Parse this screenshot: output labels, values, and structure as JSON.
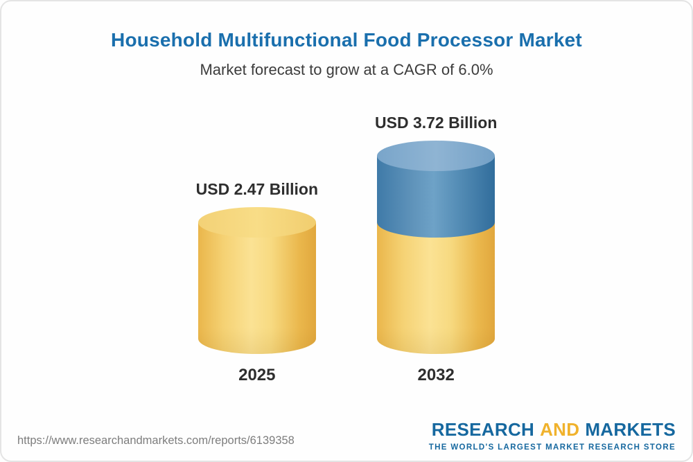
{
  "chart_data": {
    "type": "bar",
    "title": "Household Multifunctional Food Processor Market",
    "subtitle": "Market forecast to grow at a CAGR of 6.0%",
    "cagr_percent": 6.0,
    "unit": "USD Billion",
    "categories": [
      "2025",
      "2032"
    ],
    "values": [
      2.47,
      3.72
    ],
    "bars": [
      {
        "category": "2025",
        "value": 2.47,
        "label": "USD 2.47 Billion",
        "color": "#f2c75e"
      },
      {
        "category": "2032",
        "value": 3.72,
        "label": "USD 3.72 Billion",
        "base_color": "#f2c75e",
        "growth_color": "#4a84b0"
      }
    ],
    "ylim": [
      0,
      4
    ],
    "grid": false,
    "legend": false,
    "style": "3d-cylinder"
  },
  "footer": {
    "url": "https://www.researchandmarkets.com/reports/6139358",
    "logo": {
      "word1": "RESEARCH",
      "word2": "AND",
      "word3": "MARKETS",
      "tagline": "THE WORLD'S LARGEST MARKET RESEARCH STORE",
      "blue": "#16689f",
      "gold": "#f0b22c"
    }
  }
}
